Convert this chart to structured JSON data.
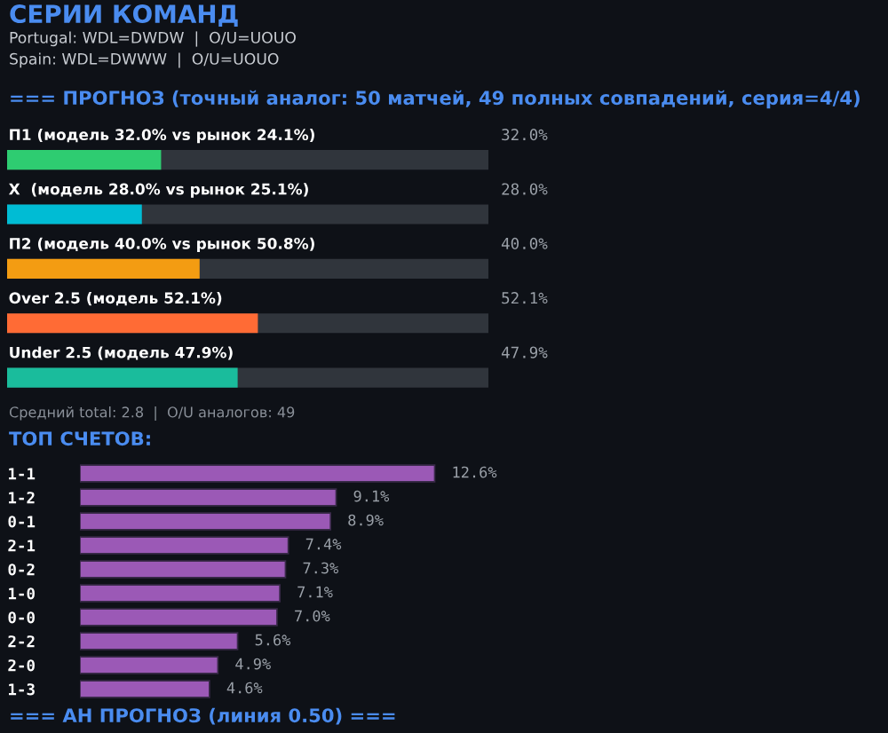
{
  "chart_data": [
    {
      "type": "other",
      "title": "СЕРИИ КОМАНД",
      "annotations": [
        "Portugal: WDL=DWDW  |  O/U=UOUO",
        "Spain: WDL=DWWW  |  O/U=UOUO"
      ]
    },
    {
      "type": "bar",
      "orientation": "horizontal",
      "title": "=== ПРОГНОЗ (точный аналог: 50 матчей, 49 полных совпадений, серия=4/4)",
      "categories": [
        "П1 (модель 32.0% vs рынок 24.1%)",
        "X  (модель 28.0% vs рынок 25.1%)",
        "П2 (модель 40.0% vs рынок 50.8%)",
        "Over 2.5 (модель 52.1%)",
        "Under 2.5 (модель 47.9%)"
      ],
      "values": [
        32.0,
        28.0,
        40.0,
        52.1,
        47.9
      ],
      "colors": [
        "#2ecc71",
        "#00bcd4",
        "#f39c12",
        "#ff6b35",
        "#1abc9c"
      ],
      "value_labels": [
        "32.0%",
        "28.0%",
        "40.0%",
        "52.1%",
        "47.9%"
      ],
      "xlim": [
        0,
        100
      ],
      "tick_labels": false,
      "grid": false,
      "legend": false,
      "annotations": [
        "Средний total: 2.8  |  O/U аналогов: 49"
      ]
    },
    {
      "type": "bar",
      "orientation": "horizontal",
      "title": "ТОП СЧЕТОВ:",
      "categories": [
        "1-1",
        "1-2",
        "0-1",
        "2-1",
        "0-2",
        "1-0",
        "0-0",
        "2-2",
        "2-0",
        "1-3"
      ],
      "values": [
        12.6,
        9.1,
        8.9,
        7.4,
        7.3,
        7.1,
        7.0,
        5.6,
        4.9,
        4.6
      ],
      "color": "#9b59b6",
      "value_labels": [
        "12.6%",
        "9.1%",
        "8.9%",
        "7.4%",
        "7.3%",
        "7.1%",
        "7.0%",
        "5.6%",
        "4.9%",
        "4.6%"
      ],
      "tick_labels": "y",
      "grid": false,
      "legend": false
    },
    {
      "type": "other",
      "title": "=== АН ПРОГНОЗ (линия 0.50) ==="
    }
  ]
}
